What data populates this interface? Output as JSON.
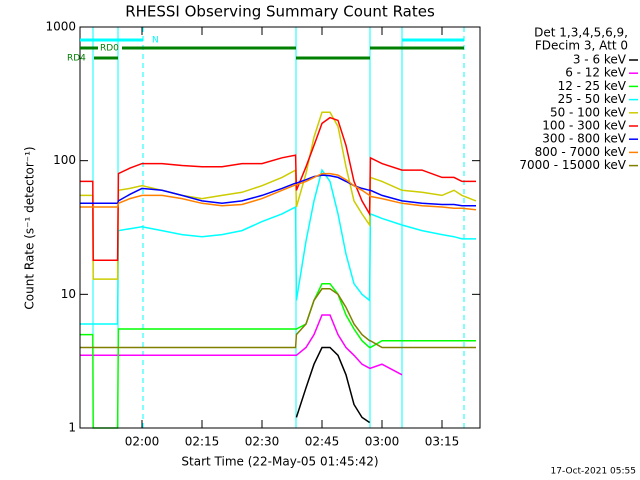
{
  "chart_data": {
    "type": "line",
    "title": "RHESSI Observing Summary Count Rates",
    "x_label": "Start Time (22-May-05 01:45:42)",
    "y_label": "Count Rate (s⁻¹ detector⁻¹)",
    "footer": "17-Oct-2021 05:55",
    "legend_header": [
      "Det 1,3,4,5,6,9,",
      "FDecim 3, Att 0"
    ],
    "log_y": true,
    "xlim": [
      104.5,
      204.5
    ],
    "ylim": [
      1,
      1000
    ],
    "yticks": [
      1,
      10,
      100,
      1000
    ],
    "xticks": [
      {
        "value": 120,
        "label": "02:00"
      },
      {
        "value": 135,
        "label": "02:15"
      },
      {
        "value": 150,
        "label": "02:30"
      },
      {
        "value": 165,
        "label": "02:45"
      },
      {
        "value": 180,
        "label": "03:00"
      },
      {
        "value": 195,
        "label": "03:15"
      }
    ],
    "vline_color": "#00ffff",
    "vlines": [
      {
        "x": 107.75,
        "style": "solid"
      },
      {
        "x": 114,
        "style": "solid"
      },
      {
        "x": 120.25,
        "style": "dashed"
      },
      {
        "x": 158.5,
        "style": "solid"
      },
      {
        "x": 177,
        "style": "solid"
      },
      {
        "x": 185,
        "style": "solid"
      },
      {
        "x": 200.5,
        "style": "dashed"
      }
    ],
    "flags": [
      {
        "label": "N",
        "color": "#00ffff",
        "segments": [
          [
            104.5,
            120.25
          ],
          [
            185,
            200.5
          ]
        ]
      },
      {
        "label": "RD0",
        "color": "#008000",
        "segments": [
          [
            104.5,
            109
          ],
          [
            115,
            158.5
          ],
          [
            177,
            200.5
          ]
        ]
      },
      {
        "label": "RD4",
        "color": "#008000",
        "segments": [
          [
            108,
            114
          ],
          [
            158.5,
            177
          ]
        ]
      }
    ],
    "x": [
      104.5,
      107.7,
      107.8,
      113.9,
      114.1,
      117,
      120,
      125,
      130,
      135,
      140,
      145,
      150,
      155,
      158.4,
      158.6,
      161,
      163,
      165,
      167,
      169,
      171,
      173,
      175,
      176.9,
      177.1,
      180,
      185,
      190,
      195,
      198,
      200,
      203.5
    ],
    "series": [
      {
        "name": "3 - 6 keV",
        "color": "#000000",
        "values": [
          null,
          null,
          null,
          null,
          null,
          null,
          null,
          null,
          null,
          null,
          null,
          null,
          null,
          null,
          null,
          1.2,
          2,
          3,
          4,
          4,
          3.5,
          2.5,
          1.5,
          1.2,
          1.1,
          null,
          null,
          null,
          null,
          null,
          null,
          null,
          null
        ]
      },
      {
        "name": "6 - 12 keV",
        "color": "#ff00ff",
        "values": [
          3.5,
          3.5,
          3.5,
          3.5,
          3.5,
          3.5,
          3.5,
          3.5,
          3.5,
          3.5,
          3.5,
          3.5,
          3.5,
          3.5,
          3.5,
          3.5,
          4,
          5,
          7,
          7,
          5,
          4,
          3.5,
          3,
          2.8,
          2.8,
          3,
          2.5,
          null,
          null,
          null,
          null,
          null
        ]
      },
      {
        "name": "12 - 25 keV",
        "color": "#00ff00",
        "values": [
          5,
          5,
          1,
          1,
          5.5,
          5.5,
          5.5,
          5.5,
          5.5,
          5.5,
          5.5,
          5.5,
          5.5,
          5.5,
          5.5,
          5.5,
          6,
          9,
          12,
          12,
          10,
          7,
          5.5,
          4.5,
          4,
          4,
          4.5,
          4.5,
          4.5,
          4.5,
          4.5,
          4.5,
          4.5
        ]
      },
      {
        "name": "25 - 50 keV",
        "color": "#00ffff",
        "values": [
          6,
          6,
          6,
          6,
          30,
          31,
          32,
          30,
          28,
          27,
          28,
          30,
          35,
          40,
          45,
          9,
          25,
          50,
          85,
          70,
          40,
          20,
          12,
          10,
          9,
          40,
          37,
          33,
          30,
          28,
          27,
          26,
          26
        ]
      },
      {
        "name": "50 - 100 keV",
        "color": "#cccc00",
        "values": [
          55,
          55,
          13,
          13,
          60,
          62,
          65,
          60,
          55,
          52,
          55,
          58,
          65,
          75,
          85,
          45,
          80,
          150,
          230,
          230,
          180,
          90,
          50,
          40,
          33,
          75,
          70,
          60,
          58,
          55,
          60,
          55,
          50
        ]
      },
      {
        "name": "100 - 300 keV",
        "color": "#ff0000",
        "values": [
          70,
          70,
          18,
          18,
          80,
          88,
          95,
          95,
          92,
          90,
          90,
          95,
          95,
          105,
          110,
          60,
          90,
          130,
          190,
          210,
          200,
          130,
          70,
          50,
          40,
          105,
          95,
          85,
          85,
          75,
          75,
          70,
          70
        ]
      },
      {
        "name": "300 - 800 keV",
        "color": "#0000ff",
        "values": [
          48,
          48,
          48,
          48,
          50,
          56,
          62,
          60,
          55,
          50,
          48,
          50,
          55,
          62,
          68,
          68,
          72,
          76,
          78,
          77,
          75,
          70,
          65,
          62,
          60,
          60,
          55,
          50,
          48,
          47,
          47,
          46,
          46
        ]
      },
      {
        "name": "800 - 7000 keV",
        "color": "#ff8000",
        "values": [
          45,
          45,
          45,
          45,
          48,
          52,
          55,
          55,
          52,
          48,
          46,
          47,
          52,
          60,
          66,
          66,
          70,
          75,
          80,
          80,
          78,
          72,
          65,
          60,
          55,
          54,
          52,
          48,
          46,
          45,
          44,
          44,
          43
        ]
      },
      {
        "name": "7000 - 15000 keV",
        "color": "#808000",
        "values": [
          4,
          4,
          4,
          4,
          4,
          4,
          4,
          4,
          4,
          4,
          4,
          4,
          4,
          4,
          4,
          5,
          6,
          9,
          11,
          11,
          10,
          8,
          6,
          5,
          4.5,
          4.5,
          4,
          4,
          4,
          4,
          4,
          4,
          4
        ]
      }
    ]
  }
}
